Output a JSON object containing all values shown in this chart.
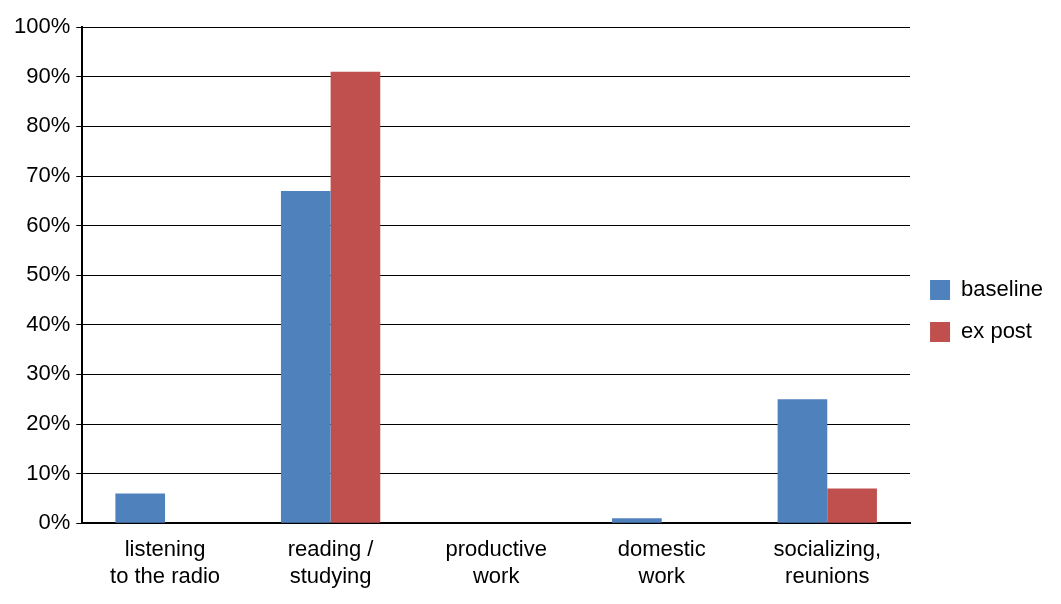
{
  "chart_data": {
    "type": "bar",
    "categories": [
      "listening to the radio",
      "reading / studying",
      "productive work",
      "domestic work",
      "socializing, reunions"
    ],
    "series": [
      {
        "name": "baseline",
        "color": "#4f81bd",
        "values": [
          6,
          67,
          0,
          1,
          25
        ]
      },
      {
        "name": "ex post",
        "color": "#c0504d",
        "values": [
          0,
          91,
          0,
          0,
          7
        ]
      }
    ],
    "ylim": [
      0,
      100
    ],
    "yticks": [
      {
        "value": 0,
        "label": "0%"
      },
      {
        "value": 10,
        "label": "10%"
      },
      {
        "value": 20,
        "label": "20%"
      },
      {
        "value": 30,
        "label": "30%"
      },
      {
        "value": 40,
        "label": "40%"
      },
      {
        "value": 50,
        "label": "50%"
      },
      {
        "value": 60,
        "label": "60%"
      },
      {
        "value": 70,
        "label": "70%"
      },
      {
        "value": 80,
        "label": "80%"
      },
      {
        "value": 90,
        "label": "90%"
      },
      {
        "value": 100,
        "label": "100%"
      }
    ],
    "grid": "y",
    "legend": "right"
  }
}
